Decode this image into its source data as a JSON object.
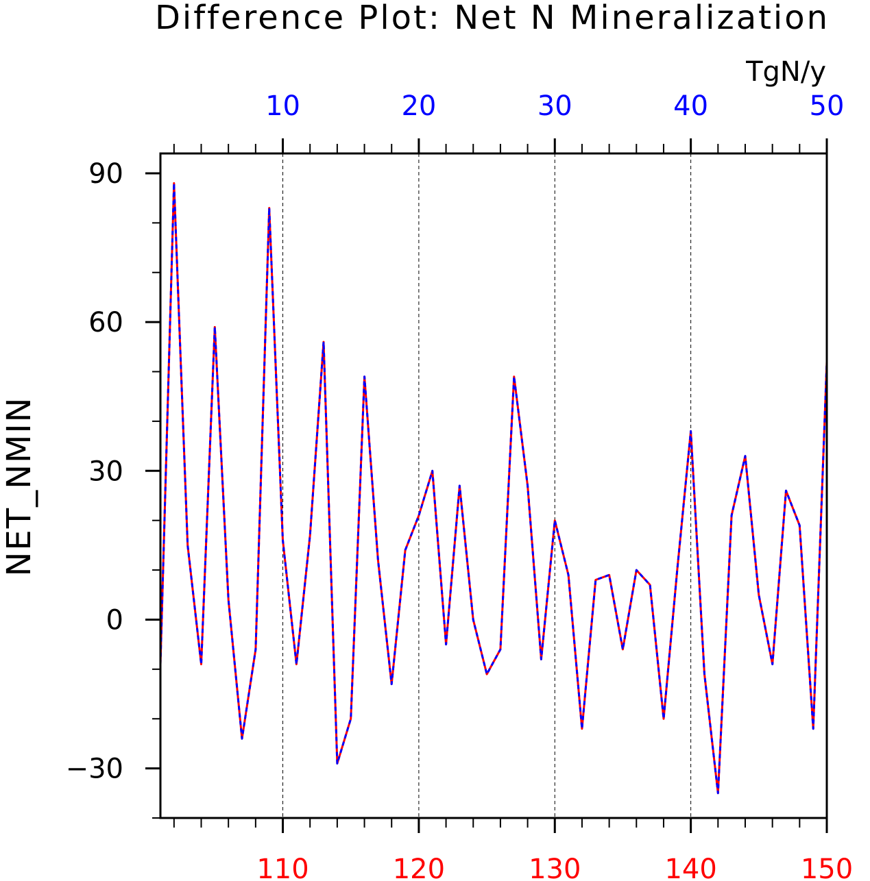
{
  "chart_data": {
    "type": "line",
    "title": "Difference Plot: Net N Mineralization",
    "units": "TgN/y",
    "ylabel": "NET_NMIN",
    "xlim": [
      101,
      150
    ],
    "ylim": [
      -40,
      94
    ],
    "bottom_axis": {
      "ticks": [
        110,
        120,
        130,
        140,
        150
      ],
      "color": "#ff0000"
    },
    "top_axis": {
      "ticks": [
        10,
        20,
        30,
        40,
        50
      ],
      "color": "#0000ff"
    },
    "yticks": [
      -30,
      0,
      30,
      60,
      90
    ],
    "grid": "vertical-dashed",
    "x": [
      101,
      102,
      103,
      104,
      105,
      106,
      107,
      108,
      109,
      110,
      111,
      112,
      113,
      114,
      115,
      116,
      117,
      118,
      119,
      120,
      121,
      122,
      123,
      124,
      125,
      126,
      127,
      128,
      129,
      130,
      131,
      132,
      133,
      134,
      135,
      136,
      137,
      138,
      139,
      140,
      141,
      142,
      143,
      144,
      145,
      146,
      147,
      148,
      149,
      150
    ],
    "series": [
      {
        "color": "#ff0000",
        "style": "solid",
        "values": [
          -9,
          88,
          15,
          -9,
          59,
          4,
          -24,
          -6,
          83,
          16,
          -9,
          17,
          56,
          -29,
          -20,
          49,
          12,
          -13,
          14,
          21,
          30,
          -5,
          27,
          0,
          -11,
          -6,
          49,
          27,
          -8,
          20,
          9,
          -22,
          8,
          9,
          -6,
          10,
          7,
          -20,
          10,
          38,
          -11,
          -35,
          21,
          33,
          5,
          -9,
          26,
          19,
          -22,
          52
        ]
      },
      {
        "color": "#0000ff",
        "style": "dashed",
        "values": [
          -9,
          88,
          15,
          -9,
          59,
          4,
          -24,
          -6,
          83,
          16,
          -9,
          17,
          56,
          -29,
          -20,
          49,
          12,
          -13,
          14,
          21,
          30,
          -5,
          27,
          0,
          -11,
          -6,
          49,
          27,
          -8,
          20,
          9,
          -22,
          8,
          9,
          -6,
          10,
          7,
          -20,
          10,
          38,
          -11,
          -35,
          21,
          33,
          5,
          -9,
          26,
          19,
          -22,
          52
        ]
      }
    ]
  }
}
